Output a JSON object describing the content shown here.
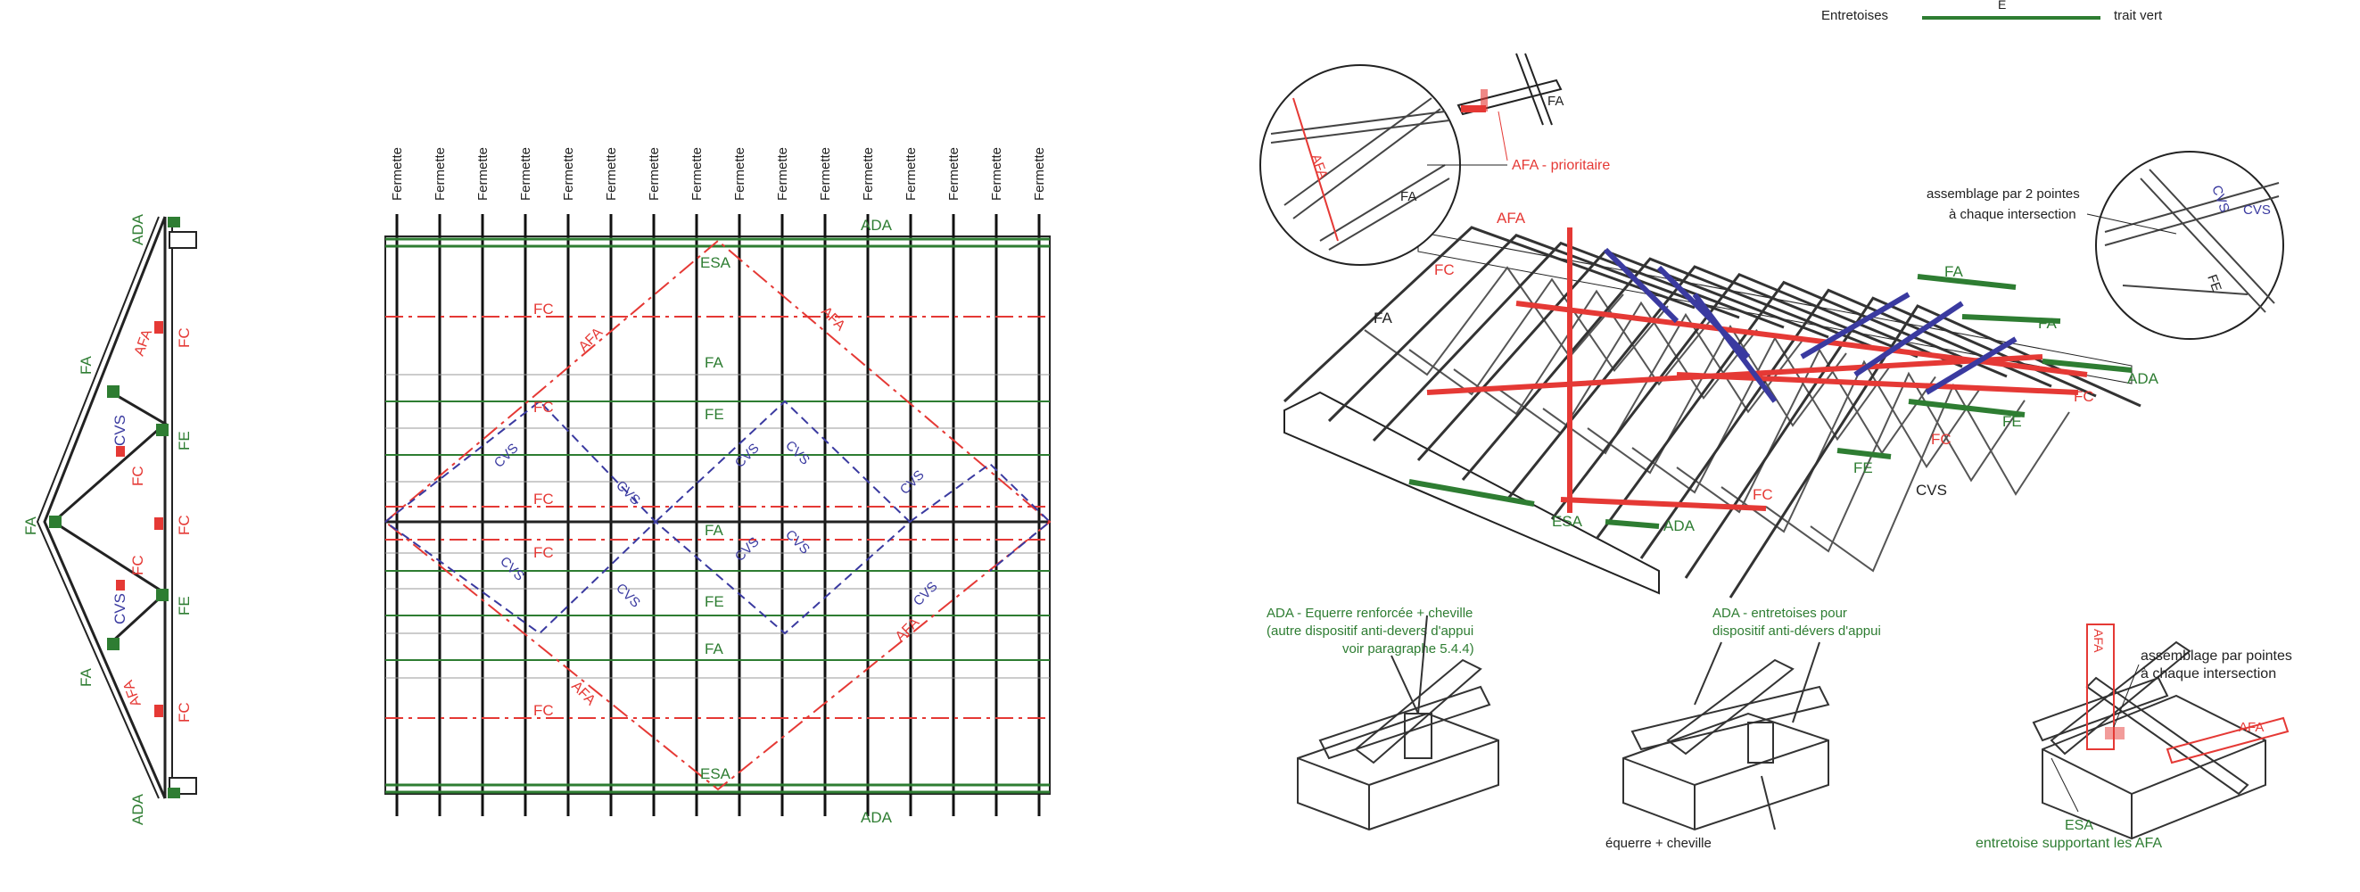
{
  "legend": {
    "entretoises": "Entretoises",
    "code_e": "E",
    "trait_vert": "trait vert"
  },
  "left_truss": {
    "labels": {
      "ada": "ADA",
      "fa": "FA",
      "afa": "AFA",
      "fc": "FC",
      "cvs": "CVS",
      "fe": "FE"
    }
  },
  "plan": {
    "fermette_label": "Fermette",
    "fermette_count": 16,
    "labels": {
      "ada": "ADA",
      "esa": "ESA",
      "fc": "FC",
      "afa": "AFA",
      "fa": "FA",
      "fe": "FE",
      "cvs": "CVS"
    }
  },
  "iso": {
    "labels": {
      "afa": "AFA",
      "fc": "FC",
      "fa": "FA",
      "ada": "ADA",
      "fe": "FE",
      "cvs": "CVS",
      "esa": "ESA"
    }
  },
  "callouts": {
    "detail1_fa": "FA",
    "afa_prioritaire": "AFA - prioritaire",
    "detail2_line1": "assemblage par 2 pointes",
    "detail2_line2": "à chaque intersection",
    "detail2_cvs": "CVS",
    "detail2_fe": "FE",
    "circle_afa": "AFA",
    "circle_fa": "FA",
    "ada1_line1": "ADA - Equerre renforcée + cheville",
    "ada1_line2": "(autre dispositif anti-devers d'appui",
    "ada1_line3": "voir paragraphe 5.4.4)",
    "ada2_line1": "ADA - entretoises pour",
    "ada2_line2": "dispositif anti-dévers d'appui",
    "equerre": "équerre + cheville",
    "assemblage_line1": "assemblage par pointes",
    "assemblage_line2": "à chaque intersection",
    "esa_line1": "ESA",
    "esa_line2": "entretoise supportant les AFA",
    "det_afa1": "AFA",
    "det_afa2": "AFA"
  },
  "colors": {
    "green": "#2e7d32",
    "red": "#e53935",
    "blue": "#3a3aa0"
  }
}
